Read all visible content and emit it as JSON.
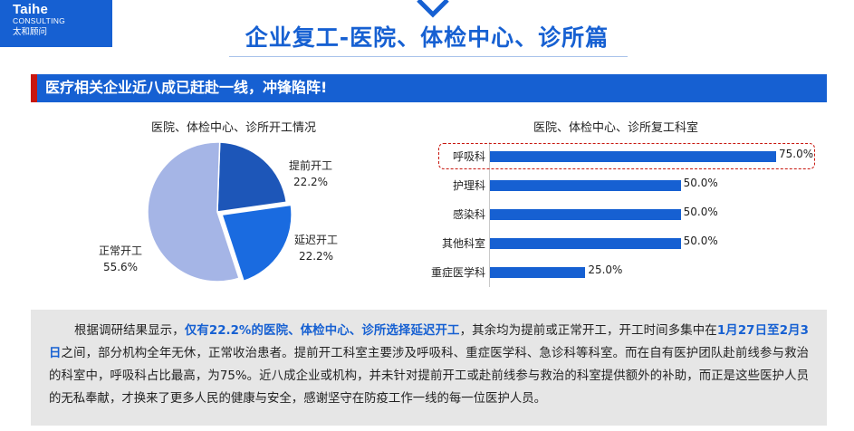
{
  "logo": {
    "line1": "Taihe",
    "line2": "CONSULTING",
    "line3": "太和顾问"
  },
  "page": {
    "title": "企业复工-医院、体检中心、诊所篇"
  },
  "banner": {
    "text": "医疗相关企业近八成已赶赴一线，冲锋陷阵!"
  },
  "colors": {
    "brand_blue": "#1660d2",
    "accent_red": "#c8170f",
    "pie_dark": "#1d56b8",
    "pie_mid": "#1a6be0",
    "pie_light": "#a5b5e6"
  },
  "chart_data": [
    {
      "type": "pie",
      "title": "医院、体检中心、诊所开工情况",
      "slices": [
        {
          "label": "提前开工",
          "value": 22.2,
          "display": "22.2%",
          "color": "#1d56b8"
        },
        {
          "label": "延迟开工",
          "value": 22.2,
          "display": "22.2%",
          "color": "#1a6be0"
        },
        {
          "label": "正常开工",
          "value": 55.6,
          "display": "55.6%",
          "color": "#a5b5e6"
        }
      ],
      "legend": "none"
    },
    {
      "type": "bar",
      "orientation": "horizontal",
      "title": "医院、体检中心、诊所复工科室",
      "categories": [
        "呼吸科",
        "护理科",
        "感染科",
        "其他科室",
        "重症医学科"
      ],
      "values": [
        75.0,
        50.0,
        50.0,
        50.0,
        25.0
      ],
      "value_labels": [
        "75.0%",
        "50.0%",
        "50.0%",
        "50.0%",
        "25.0%"
      ],
      "xlim": [
        0,
        100
      ],
      "highlighted": "呼吸科",
      "grid": false
    }
  ],
  "summary": {
    "p1": "根据调研结果显示，",
    "h1": "仅有22.2%的医院、体检中心、诊所选择延迟开工",
    "p2": "，其余均为提前或正常开工，开工时间多集中在",
    "h2": "1月27日至2月3日",
    "p3": "之间，部分机构全年无休，正常收治患者。提前开工科室主要涉及呼吸科、重症医学科、急诊科等科室。而在自有医护团队赴前线参与救治的科室中，呼吸科占比最高，为75%。近八成企业或机构，并未针对提前开工或赴前线参与救治的科室提供额外的补助，而正是这些医护人员的无私奉献，才换来了更多人民的健康与安全，感谢坚守在防疫工作一线的每一位医护人员。"
  }
}
